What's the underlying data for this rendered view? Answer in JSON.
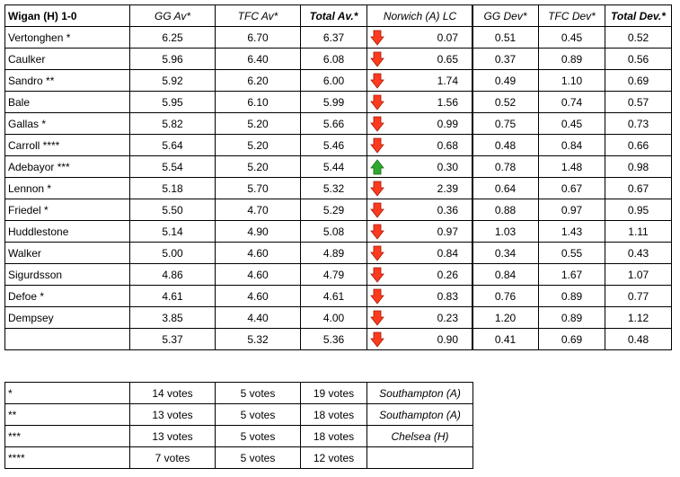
{
  "main": {
    "headers": [
      "Wigan (H) 1-0",
      "GG Av*",
      "TFC Av*",
      "Total Av.*",
      "Norwich (A) LC"
    ],
    "rows": [
      {
        "name": "Vertonghen *",
        "gg": "6.25",
        "tfc": "6.70",
        "total": "6.37",
        "trend": "down",
        "lc": "0.07"
      },
      {
        "name": "Caulker",
        "gg": "5.96",
        "tfc": "6.40",
        "total": "6.08",
        "trend": "down",
        "lc": "0.65"
      },
      {
        "name": "Sandro **",
        "gg": "5.92",
        "tfc": "6.20",
        "total": "6.00",
        "trend": "down",
        "lc": "1.74"
      },
      {
        "name": "Bale",
        "gg": "5.95",
        "tfc": "6.10",
        "total": "5.99",
        "trend": "down",
        "lc": "1.56"
      },
      {
        "name": "Gallas *",
        "gg": "5.82",
        "tfc": "5.20",
        "total": "5.66",
        "trend": "down",
        "lc": "0.99"
      },
      {
        "name": "Carroll ****",
        "gg": "5.64",
        "tfc": "5.20",
        "total": "5.46",
        "trend": "down",
        "lc": "0.68"
      },
      {
        "name": "Adebayor ***",
        "gg": "5.54",
        "tfc": "5.20",
        "total": "5.44",
        "trend": "up",
        "lc": "0.30"
      },
      {
        "name": "Lennon *",
        "gg": "5.18",
        "tfc": "5.70",
        "total": "5.32",
        "trend": "down",
        "lc": "2.39"
      },
      {
        "name": "Friedel *",
        "gg": "5.50",
        "tfc": "4.70",
        "total": "5.29",
        "trend": "down",
        "lc": "0.36"
      },
      {
        "name": "Huddlestone",
        "gg": "5.14",
        "tfc": "4.90",
        "total": "5.08",
        "trend": "down",
        "lc": "0.97"
      },
      {
        "name": "Walker",
        "gg": "5.00",
        "tfc": "4.60",
        "total": "4.89",
        "trend": "down",
        "lc": "0.84"
      },
      {
        "name": "Sigurdsson",
        "gg": "4.86",
        "tfc": "4.60",
        "total": "4.79",
        "trend": "down",
        "lc": "0.26"
      },
      {
        "name": "Defoe *",
        "gg": "4.61",
        "tfc": "4.60",
        "total": "4.61",
        "trend": "down",
        "lc": "0.83"
      },
      {
        "name": "Dempsey",
        "gg": "3.85",
        "tfc": "4.40",
        "total": "4.00",
        "trend": "down",
        "lc": "0.23"
      }
    ],
    "summary": {
      "name": "",
      "gg": "5.37",
      "tfc": "5.32",
      "total": "5.36",
      "trend": "down",
      "lc": "0.90"
    }
  },
  "dev": {
    "headers": [
      "GG Dev*",
      "TFC Dev*",
      "Total Dev.*"
    ],
    "rows": [
      [
        "0.51",
        "0.45",
        "0.52"
      ],
      [
        "0.37",
        "0.89",
        "0.56"
      ],
      [
        "0.49",
        "1.10",
        "0.69"
      ],
      [
        "0.52",
        "0.74",
        "0.57"
      ],
      [
        "0.75",
        "0.45",
        "0.73"
      ],
      [
        "0.48",
        "0.84",
        "0.66"
      ],
      [
        "0.78",
        "1.48",
        "0.98"
      ],
      [
        "0.64",
        "0.67",
        "0.67"
      ],
      [
        "0.88",
        "0.97",
        "0.95"
      ],
      [
        "1.03",
        "1.43",
        "1.11"
      ],
      [
        "0.34",
        "0.55",
        "0.43"
      ],
      [
        "0.84",
        "1.67",
        "1.07"
      ],
      [
        "0.76",
        "0.89",
        "0.77"
      ],
      [
        "1.20",
        "0.89",
        "1.12"
      ]
    ],
    "summary": [
      "0.41",
      "0.69",
      "0.48"
    ]
  },
  "votes": {
    "rows": [
      {
        "key": "*",
        "gg": "14 votes",
        "tfc": "5 votes",
        "total": "19 votes",
        "match": "Southampton (A)"
      },
      {
        "key": "**",
        "gg": "13 votes",
        "tfc": "5 votes",
        "total": "18 votes",
        "match": "Southampton (A)"
      },
      {
        "key": "***",
        "gg": "13 votes",
        "tfc": "5 votes",
        "total": "18 votes",
        "match": "Chelsea (H)"
      },
      {
        "key": "****",
        "gg": "7 votes",
        "tfc": "5 votes",
        "total": "12 votes",
        "match": ""
      }
    ]
  },
  "colors": {
    "arrow_down": "#ff3b1f",
    "arrow_up": "#2fa82f"
  }
}
